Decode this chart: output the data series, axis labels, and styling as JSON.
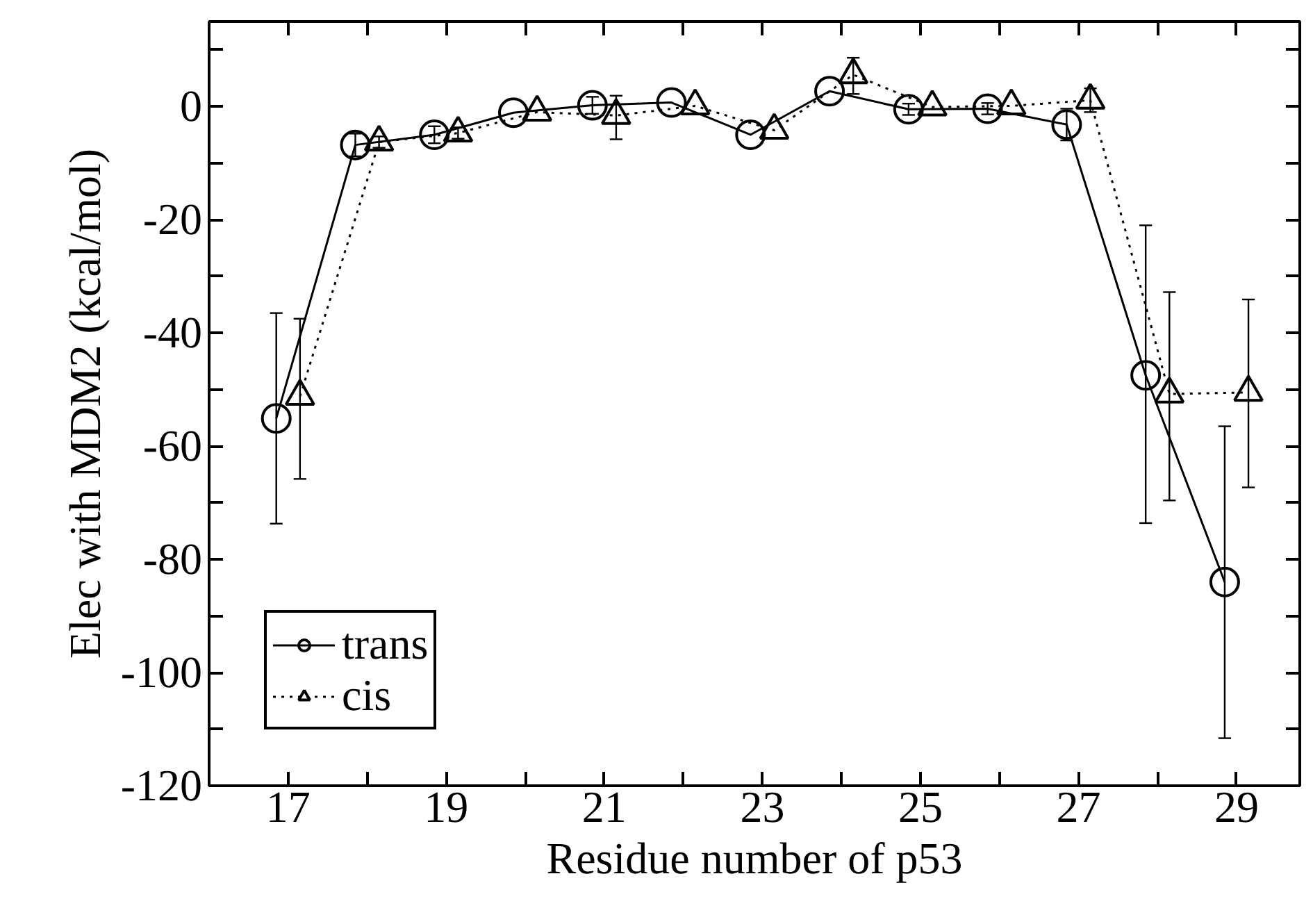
{
  "chart_data": {
    "type": "line",
    "xlabel": "Residue number of p53",
    "ylabel": "Elec with MDM2 (kcal/mol)",
    "xlim": [
      16,
      29.8
    ],
    "xticks": [
      {
        "value": 16,
        "label": null
      },
      17,
      {
        "value": 18,
        "label": null
      },
      19,
      {
        "value": 20,
        "label": null
      },
      21,
      {
        "value": 22,
        "label": null
      },
      23,
      {
        "value": 24,
        "label": null
      },
      25,
      {
        "value": 26,
        "label": null
      },
      27,
      {
        "value": 28,
        "label": null
      },
      29
    ],
    "ylim": [
      -120,
      15
    ],
    "yticks": [
      -120,
      {
        "value": -110,
        "label": null
      },
      -100,
      {
        "value": -90,
        "label": null
      },
      -80,
      {
        "value": -70,
        "label": null
      },
      -60,
      {
        "value": -50,
        "label": null
      },
      -40,
      {
        "value": -30,
        "label": null
      },
      -20,
      {
        "value": -10,
        "label": null
      },
      0,
      {
        "value": 10,
        "label": null
      }
    ],
    "grid": false,
    "legend": "bottom left",
    "series": [
      {
        "name": "trans",
        "color": "#000000",
        "marker": "circle",
        "line_style": "solid",
        "x": [
          16.85,
          17.85,
          18.85,
          19.85,
          20.85,
          21.85,
          22.85,
          23.85,
          24.85,
          25.85,
          26.85,
          27.85,
          28.85
        ],
        "values": [
          -55.1,
          -6.8,
          -5.0,
          -1.1,
          0.2,
          0.7,
          -5.0,
          2.7,
          -0.5,
          -0.4,
          -3.2,
          -47.5,
          -84.0
        ],
        "errors": [
          [
            -73.7,
            -36.5
          ],
          [
            -8.8,
            -4.8
          ],
          [
            -6.5,
            -3.5
          ],
          null,
          [
            -1.3,
            1.7
          ],
          null,
          null,
          null,
          [
            -1.5,
            0.5
          ],
          [
            -1.4,
            0.6
          ],
          [
            -6.0,
            -0.4
          ],
          [
            -73.6,
            -21.0
          ],
          [
            -111.6,
            -56.5
          ]
        ]
      },
      {
        "name": "cis",
        "color": "#000000",
        "marker": "triangle",
        "line_style": "dotted",
        "x": [
          17.15,
          18.15,
          19.15,
          20.15,
          21.15,
          22.15,
          23.15,
          24.15,
          25.15,
          26.15,
          27.15,
          28.15,
          29.15
        ],
        "values": [
          -51.2,
          -6.3,
          -4.7,
          -1.0,
          -1.6,
          0.1,
          -4.2,
          5.6,
          -0.1,
          0.1,
          1.1,
          -50.8,
          -50.5
        ],
        "errors": [
          [
            -65.8,
            -37.5
          ],
          [
            -7.3,
            -5.3
          ],
          [
            -5.7,
            -3.7
          ],
          null,
          [
            -5.8,
            1.9
          ],
          null,
          null,
          [
            2.2,
            8.6
          ],
          null,
          null,
          [
            -1.0,
            3.2
          ],
          [
            -69.6,
            -32.8
          ],
          [
            -67.3,
            -34.1
          ]
        ]
      }
    ]
  }
}
